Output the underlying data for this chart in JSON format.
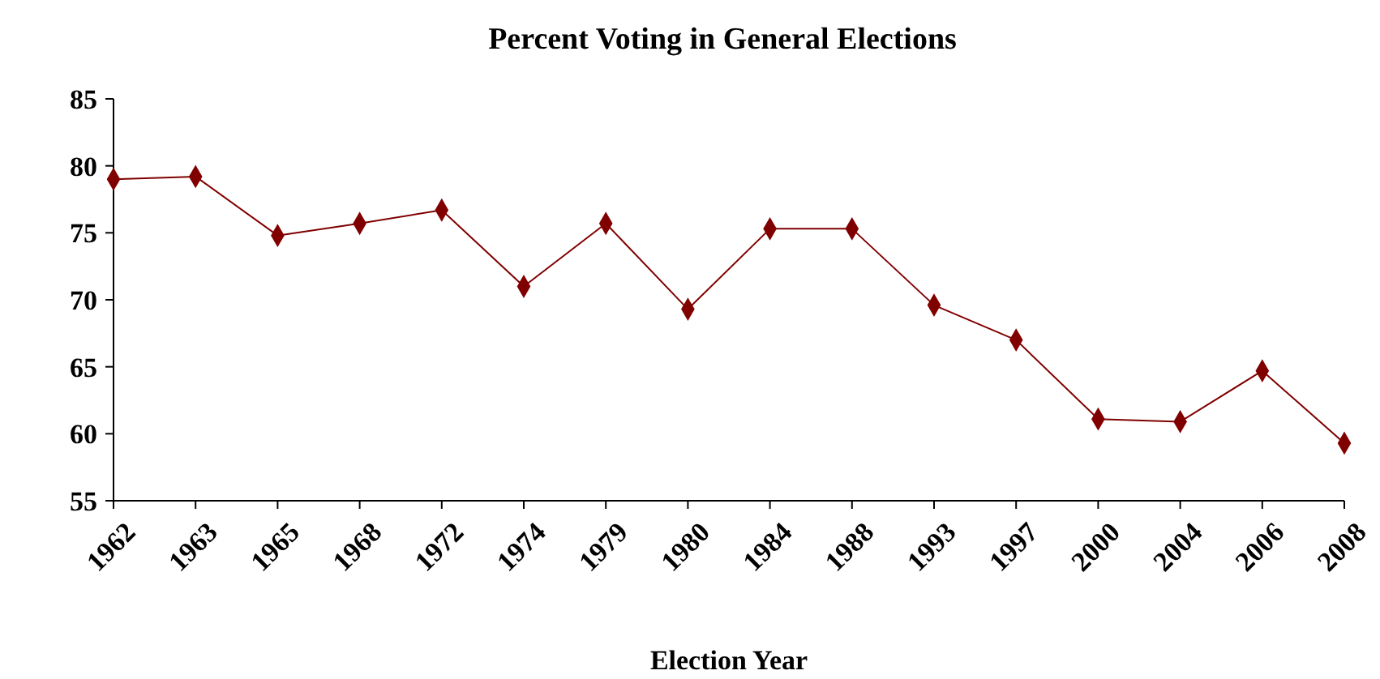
{
  "chart_data": {
    "type": "line",
    "title": "Percent Voting in General Elections",
    "xlabel": "Election Year",
    "categories": [
      "1962",
      "1963",
      "1965",
      "1968",
      "1972",
      "1974",
      "1979",
      "1980",
      "1984",
      "1988",
      "1993",
      "1997",
      "2000",
      "2004",
      "2006",
      "2008"
    ],
    "series": [
      {
        "color": "#800000",
        "values": [
          79.0,
          79.2,
          74.8,
          75.7,
          76.7,
          71.0,
          75.7,
          69.3,
          75.3,
          75.3,
          69.6,
          67.0,
          61.1,
          60.9,
          64.7,
          59.3
        ]
      }
    ],
    "ylim": [
      55,
      85
    ],
    "yticks": [
      55,
      60,
      65,
      70,
      75,
      80,
      85
    ],
    "grid": false,
    "marker": "diamond",
    "line_style": "solid"
  }
}
